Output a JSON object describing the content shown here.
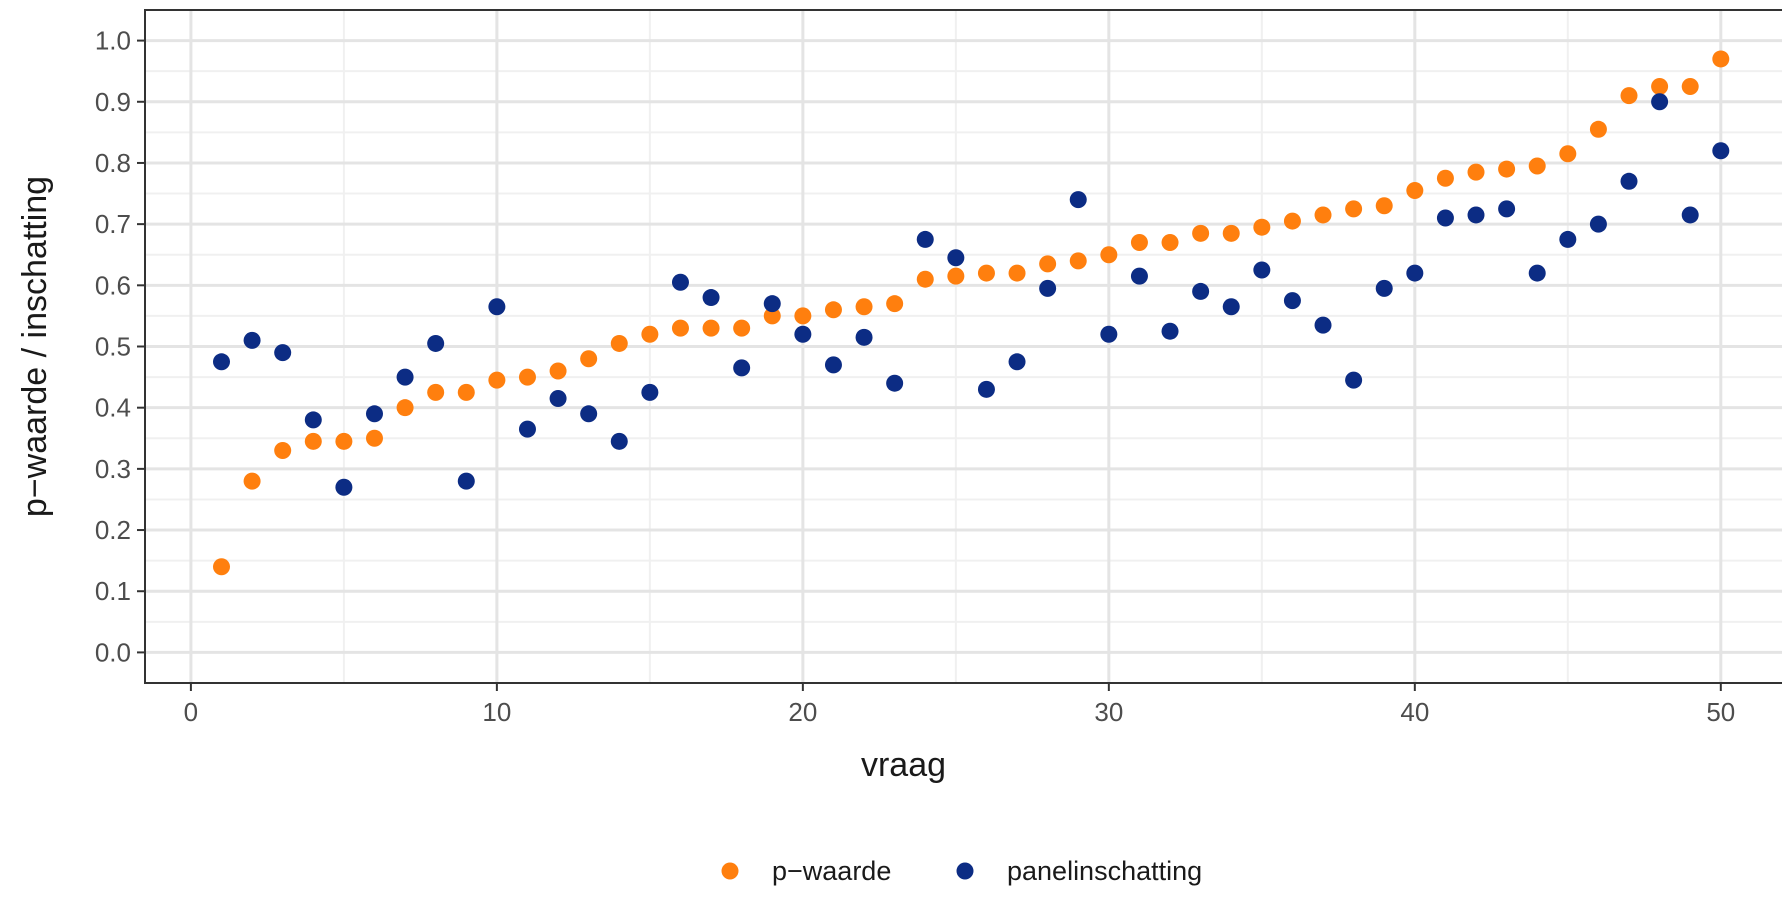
{
  "chart_data": {
    "type": "scatter",
    "xlabel": "vraag",
    "ylabel": "p−waarde / inschatting",
    "xlim": [
      -1.5,
      52
    ],
    "ylim": [
      -0.05,
      1.05
    ],
    "x_ticks": [
      0,
      10,
      20,
      30,
      40,
      50
    ],
    "x_tick_labels": [
      "0",
      "10",
      "20",
      "30",
      "40",
      "50"
    ],
    "y_ticks": [
      0.0,
      0.1,
      0.2,
      0.3,
      0.4,
      0.5,
      0.6,
      0.7,
      0.8,
      0.9,
      1.0
    ],
    "y_tick_labels": [
      "0.0",
      "0.1",
      "0.2",
      "0.3",
      "0.4",
      "0.5",
      "0.6",
      "0.7",
      "0.8",
      "0.9",
      "1.0"
    ],
    "grid": true,
    "legend_position": "bottom",
    "x": [
      1,
      2,
      3,
      4,
      5,
      6,
      7,
      8,
      9,
      10,
      11,
      12,
      13,
      14,
      15,
      16,
      17,
      18,
      19,
      20,
      21,
      22,
      23,
      24,
      25,
      26,
      27,
      28,
      29,
      30,
      31,
      32,
      33,
      34,
      35,
      36,
      37,
      38,
      39,
      40,
      41,
      42,
      43,
      44,
      45,
      46,
      47,
      48,
      49,
      50
    ],
    "series": [
      {
        "name": "p−waarde",
        "color": "#ff7f0e",
        "values": [
          0.14,
          0.28,
          0.33,
          0.345,
          0.345,
          0.35,
          0.4,
          0.425,
          0.425,
          0.445,
          0.45,
          0.46,
          0.48,
          0.505,
          0.52,
          0.53,
          0.53,
          0.53,
          0.55,
          0.55,
          0.56,
          0.565,
          0.57,
          0.61,
          0.615,
          0.62,
          0.62,
          0.635,
          0.64,
          0.65,
          0.67,
          0.67,
          0.685,
          0.685,
          0.695,
          0.705,
          0.715,
          0.725,
          0.73,
          0.755,
          0.775,
          0.785,
          0.79,
          0.795,
          0.815,
          0.855,
          0.91,
          0.925,
          0.925,
          0.97
        ]
      },
      {
        "name": "panelinschatting",
        "color": "#0c2c84",
        "values": [
          0.475,
          0.51,
          0.49,
          0.38,
          0.27,
          0.39,
          0.45,
          0.505,
          0.28,
          0.565,
          0.365,
          0.415,
          0.39,
          0.345,
          0.425,
          0.605,
          0.58,
          0.465,
          0.57,
          0.52,
          0.47,
          0.515,
          0.44,
          0.675,
          0.645,
          0.43,
          0.475,
          0.595,
          0.74,
          0.52,
          0.615,
          0.525,
          0.59,
          0.565,
          0.625,
          0.575,
          0.535,
          0.445,
          0.595,
          0.62,
          0.71,
          0.715,
          0.725,
          0.62,
          0.675,
          0.7,
          0.77,
          0.9,
          0.715,
          0.82
        ]
      }
    ]
  }
}
